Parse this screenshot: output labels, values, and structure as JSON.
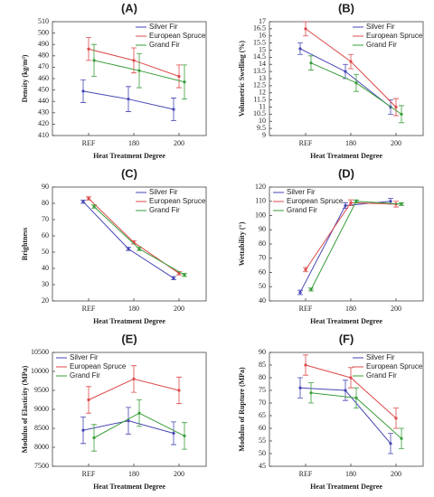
{
  "chart_data": [
    {
      "type": "line",
      "panel": "(A)",
      "x_label": "Heat Treatment Degree",
      "y_label": "Density (kg/m³)",
      "categories": [
        "REF",
        "180",
        "200"
      ],
      "ylim": [
        410,
        510
      ],
      "yticks": [
        410,
        420,
        430,
        440,
        450,
        460,
        470,
        480,
        490,
        500,
        510
      ],
      "legend": "upper right",
      "series": [
        {
          "name": "Silver Fir",
          "color": "#4646b4",
          "values": [
            449,
            442,
            433
          ],
          "errors": [
            10,
            11,
            10
          ]
        },
        {
          "name": "European Spruce",
          "color": "#dc4a4a",
          "values": [
            486,
            476,
            462
          ],
          "errors": [
            10,
            11,
            10
          ]
        },
        {
          "name": "Grand Fir",
          "color": "#3a9e3a",
          "values": [
            476,
            467,
            457
          ],
          "errors": [
            14,
            15,
            15
          ]
        }
      ]
    },
    {
      "type": "line",
      "panel": "(B)",
      "x_label": "Heat Treatment Degree",
      "y_label": "Volumetric Swelling (%)",
      "categories": [
        "REF",
        "180",
        "200"
      ],
      "ylim": [
        9,
        17
      ],
      "yticks": [
        9,
        9.5,
        10,
        10.5,
        11,
        11.5,
        12,
        12.5,
        13,
        13.5,
        14,
        14.5,
        15,
        15.5,
        16,
        16.5,
        17
      ],
      "legend": "upper right",
      "series": [
        {
          "name": "Silver Fir",
          "color": "#4646b4",
          "values": [
            15.1,
            13.5,
            11.0
          ],
          "errors": [
            0.4,
            0.5,
            0.5
          ]
        },
        {
          "name": "European Spruce",
          "color": "#dc4a4a",
          "values": [
            16.5,
            14.2,
            11.0
          ],
          "errors": [
            0.5,
            0.5,
            0.6
          ]
        },
        {
          "name": "Grand Fir",
          "color": "#3a9e3a",
          "values": [
            14.1,
            12.7,
            10.5
          ],
          "errors": [
            0.5,
            0.6,
            0.6
          ]
        }
      ]
    },
    {
      "type": "line",
      "panel": "(C)",
      "x_label": "Heat Treatment Degree",
      "y_label": "Brightness",
      "categories": [
        "REF",
        "180",
        "200"
      ],
      "ylim": [
        20,
        90
      ],
      "yticks": [
        20,
        30,
        40,
        50,
        60,
        70,
        80,
        90
      ],
      "legend": "upper right",
      "series": [
        {
          "name": "Silver Fir",
          "color": "#4646b4",
          "values": [
            81,
            52,
            34
          ],
          "errors": [
            1,
            1,
            1
          ]
        },
        {
          "name": "European Spruce",
          "color": "#dc4a4a",
          "values": [
            83,
            56,
            37
          ],
          "errors": [
            1,
            1,
            1
          ]
        },
        {
          "name": "Grand Fir",
          "color": "#3a9e3a",
          "values": [
            78,
            52,
            36
          ],
          "errors": [
            1,
            1,
            1
          ]
        }
      ]
    },
    {
      "type": "line",
      "panel": "(D)",
      "x_label": "Heat Treatment Degree",
      "y_label": "Wettability (°)",
      "categories": [
        "REF",
        "180",
        "200"
      ],
      "ylim": [
        40,
        120
      ],
      "yticks": [
        40,
        50,
        60,
        70,
        80,
        90,
        100,
        110,
        120
      ],
      "legend": "upper left",
      "series": [
        {
          "name": "Silver Fir",
          "color": "#4646b4",
          "values": [
            46,
            107,
            110
          ],
          "errors": [
            1.5,
            2,
            2
          ]
        },
        {
          "name": "European Spruce",
          "color": "#dc4a4a",
          "values": [
            62,
            109,
            108
          ],
          "errors": [
            1.5,
            2,
            2
          ]
        },
        {
          "name": "Grand Fir",
          "color": "#3a9e3a",
          "values": [
            48,
            110,
            108
          ],
          "errors": [
            1,
            1,
            1
          ]
        }
      ]
    },
    {
      "type": "line",
      "panel": "(E)",
      "x_label": "Heat Treatment Degree",
      "y_label": "Modulus of Elasticity (MPa)",
      "categories": [
        "REF",
        "180",
        "200"
      ],
      "ylim": [
        7500,
        10500
      ],
      "yticks": [
        7500,
        8000,
        8500,
        9000,
        9500,
        10000,
        10500
      ],
      "legend": "upper left",
      "series": [
        {
          "name": "Silver Fir",
          "color": "#4646b4",
          "values": [
            8450,
            8700,
            8370
          ],
          "errors": [
            350,
            350,
            300
          ]
        },
        {
          "name": "European Spruce",
          "color": "#dc4a4a",
          "values": [
            9250,
            9800,
            9500
          ],
          "errors": [
            350,
            350,
            350
          ]
        },
        {
          "name": "Grand Fir",
          "color": "#3a9e3a",
          "values": [
            8250,
            8900,
            8300
          ],
          "errors": [
            350,
            350,
            350
          ]
        }
      ]
    },
    {
      "type": "line",
      "panel": "(F)",
      "x_label": "Heat Treatment Degree",
      "y_label": "Modulus of Rupture (MPa)",
      "categories": [
        "REF",
        "180",
        "200"
      ],
      "ylim": [
        45,
        90
      ],
      "yticks": [
        45,
        50,
        55,
        60,
        65,
        70,
        75,
        80,
        85,
        90
      ],
      "legend": "upper right",
      "series": [
        {
          "name": "Silver Fir",
          "color": "#4646b4",
          "values": [
            76,
            75,
            54
          ],
          "errors": [
            4,
            4,
            4
          ]
        },
        {
          "name": "European Spruce",
          "color": "#dc4a4a",
          "values": [
            85,
            80,
            64
          ],
          "errors": [
            4,
            4,
            4
          ]
        },
        {
          "name": "Grand Fir",
          "color": "#3a9e3a",
          "values": [
            74,
            72,
            56
          ],
          "errors": [
            4,
            4,
            4
          ]
        }
      ]
    }
  ]
}
